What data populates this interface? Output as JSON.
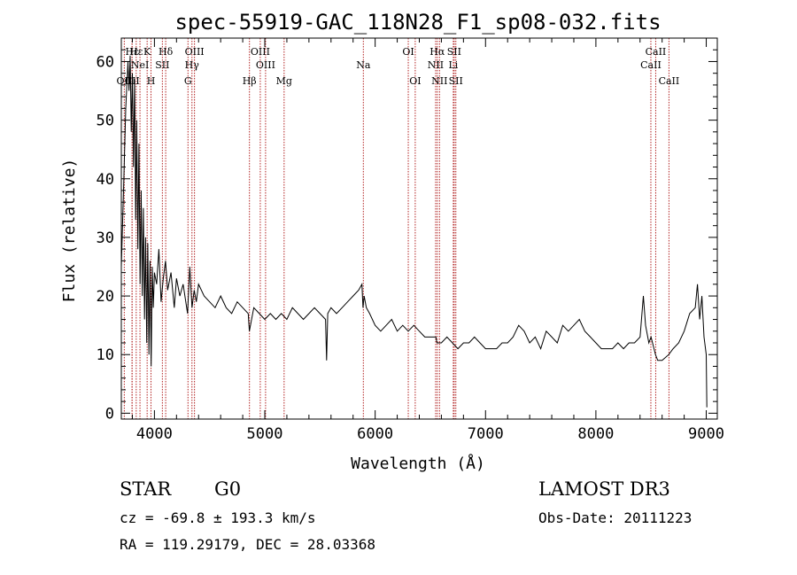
{
  "chart_data": {
    "type": "line",
    "title": "spec-55919-GAC_118N28_F1_sp08-032.fits",
    "xlabel": "Wavelength (Å)",
    "ylabel": "Flux (relative)",
    "xlim": [
      3700,
      9100
    ],
    "ylim": [
      -1,
      64
    ],
    "xticks": [
      4000,
      5000,
      6000,
      7000,
      8000,
      9000
    ],
    "yticks": [
      0,
      10,
      20,
      30,
      40,
      50,
      60
    ],
    "series": [
      {
        "name": "flux",
        "x": [
          3700,
          3720,
          3740,
          3760,
          3770,
          3780,
          3790,
          3800,
          3810,
          3820,
          3830,
          3840,
          3850,
          3860,
          3870,
          3880,
          3890,
          3900,
          3910,
          3920,
          3930,
          3940,
          3950,
          3960,
          3970,
          3980,
          3990,
          4000,
          4020,
          4040,
          4060,
          4080,
          4100,
          4120,
          4150,
          4180,
          4200,
          4230,
          4260,
          4300,
          4320,
          4340,
          4360,
          4380,
          4400,
          4450,
          4500,
          4550,
          4600,
          4650,
          4700,
          4750,
          4800,
          4850,
          4860,
          4900,
          4950,
          5000,
          5050,
          5100,
          5150,
          5200,
          5250,
          5300,
          5350,
          5400,
          5450,
          5500,
          5550,
          5560,
          5570,
          5600,
          5650,
          5700,
          5750,
          5800,
          5850,
          5880,
          5890,
          5900,
          5920,
          5950,
          6000,
          6050,
          6100,
          6150,
          6200,
          6250,
          6300,
          6350,
          6400,
          6450,
          6500,
          6550,
          6560,
          6600,
          6650,
          6700,
          6750,
          6800,
          6850,
          6900,
          6950,
          7000,
          7050,
          7100,
          7150,
          7200,
          7250,
          7300,
          7350,
          7400,
          7450,
          7500,
          7550,
          7600,
          7650,
          7700,
          7750,
          7800,
          7850,
          7900,
          7950,
          8000,
          8050,
          8100,
          8150,
          8200,
          8250,
          8300,
          8350,
          8400,
          8430,
          8450,
          8480,
          8500,
          8540,
          8560,
          8600,
          8660,
          8700,
          8750,
          8800,
          8850,
          8900,
          8920,
          8940,
          8960,
          8980,
          9000,
          9005
        ],
        "values": [
          25,
          38,
          52,
          60,
          55,
          61,
          48,
          58,
          42,
          57,
          33,
          50,
          28,
          46,
          22,
          38,
          20,
          35,
          16,
          30,
          12,
          29,
          10,
          26,
          8,
          25,
          18,
          24,
          22,
          28,
          19,
          23,
          26,
          21,
          24,
          18,
          23,
          20,
          22,
          17,
          25,
          18,
          21,
          19,
          22,
          20,
          19,
          18,
          20,
          18,
          17,
          19,
          18,
          17,
          14,
          18,
          17,
          16,
          17,
          16,
          17,
          16,
          18,
          17,
          16,
          17,
          18,
          17,
          16,
          9,
          17,
          18,
          17,
          18,
          19,
          20,
          21,
          22,
          18,
          20,
          18,
          17,
          15,
          14,
          15,
          16,
          14,
          15,
          14,
          15,
          14,
          13,
          13,
          13,
          12,
          12,
          13,
          12,
          11,
          12,
          12,
          13,
          12,
          11,
          11,
          11,
          12,
          12,
          13,
          15,
          14,
          12,
          13,
          11,
          14,
          13,
          12,
          15,
          14,
          15,
          16,
          14,
          13,
          12,
          11,
          11,
          11,
          12,
          11,
          12,
          12,
          13,
          20,
          15,
          12,
          13,
          10,
          9,
          9,
          10,
          11,
          12,
          14,
          17,
          18,
          22,
          16,
          20,
          13,
          10,
          1
        ],
        "color": "#000000"
      }
    ],
    "lines": [
      {
        "name": "Hε",
        "wave": 3797,
        "row": 1
      },
      {
        "name": "CII",
        "wave": 3798,
        "row": 3
      },
      {
        "name": "OII",
        "wave": 3727,
        "row": 3
      },
      {
        "name": "Hε",
        "wave": 3835,
        "row": 1
      },
      {
        "name": "NeI",
        "wave": 3869,
        "row": 2
      },
      {
        "name": "K",
        "wave": 3934,
        "row": 1
      },
      {
        "name": "H",
        "wave": 3969,
        "row": 3
      },
      {
        "name": "SII",
        "wave": 4072,
        "row": 2
      },
      {
        "name": "Hδ",
        "wave": 4102,
        "row": 1
      },
      {
        "name": "OIII",
        "wave": 4363,
        "row": 1
      },
      {
        "name": "Hγ",
        "wave": 4340,
        "row": 2
      },
      {
        "name": "G",
        "wave": 4304,
        "row": 3
      },
      {
        "name": "Hβ",
        "wave": 4861,
        "row": 3
      },
      {
        "name": "OIII",
        "wave": 4959,
        "row": 1
      },
      {
        "name": "OIII",
        "wave": 5007,
        "row": 2
      },
      {
        "name": "Mg",
        "wave": 5175,
        "row": 3
      },
      {
        "name": "Na",
        "wave": 5893,
        "row": 2
      },
      {
        "name": "OI",
        "wave": 6300,
        "row": 1
      },
      {
        "name": "OI",
        "wave": 6363,
        "row": 3
      },
      {
        "name": "Hα",
        "wave": 6563,
        "row": 1
      },
      {
        "name": "NII",
        "wave": 6548,
        "row": 2
      },
      {
        "name": "NII",
        "wave": 6583,
        "row": 3
      },
      {
        "name": "SII",
        "wave": 6716,
        "row": 1
      },
      {
        "name": "Li",
        "wave": 6708,
        "row": 2
      },
      {
        "name": "SII",
        "wave": 6731,
        "row": 3
      },
      {
        "name": "CaII",
        "wave": 8498,
        "row": 2
      },
      {
        "name": "CaII",
        "wave": 8542,
        "row": 1
      },
      {
        "name": "CaII",
        "wave": 8662,
        "row": 3
      }
    ],
    "line_color": "#b22222"
  },
  "info": {
    "object_class": "STAR",
    "subclass": "G0",
    "survey": "LAMOST DR3",
    "cz": "cz = -69.8 ± 193.3 km/s",
    "obs_date": "Obs-Date: 20111223",
    "coords": "RA = 119.29179, DEC =  28.03368"
  }
}
